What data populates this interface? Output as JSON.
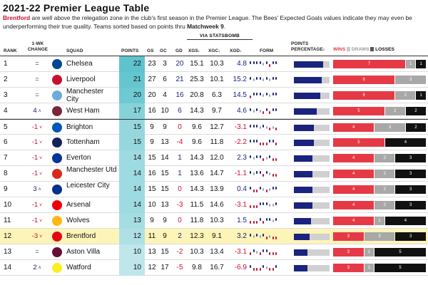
{
  "title": "2021-22 Premier League Table",
  "subtitle": {
    "team": "Brentford",
    "text1": " are well above the relegation zone in the club's first season in the Premier League. The Bees' Expected Goals values indicate they may even be underperforming their true quality. Teams sorted based on points thru ",
    "matchweek": "Matchweek 9",
    "text2": "."
  },
  "via_label": "VIA STATSBOMB",
  "headers": {
    "rank": "RANK",
    "change": "1-WK CHANGE",
    "squad": "SQUAD",
    "points": "POINTS",
    "gs": "GS",
    "gc": "GC",
    "gd": "GD",
    "xgs": "XGS",
    "xgc": "XGC",
    "xgd": "XGD",
    "footnote1": "1",
    "form": "FORM",
    "pct": "POINTS PERCENTAGE",
    "footnote2": "2",
    "wins": "WINS",
    "draws": "DRAWS",
    "losses": "LOSSES"
  },
  "colors": {
    "accent_red": "#c8102e",
    "navy": "#1a237e",
    "win": "#e63946",
    "draw": "#a8a8a8",
    "loss": "#111111"
  },
  "rows": [
    {
      "rank": "1",
      "change": "=",
      "dir": "eq",
      "squad": "Chelsea",
      "crest": "#034694",
      "crest_label": "CHE",
      "points": 22,
      "gs": "23",
      "gc": "3",
      "gd": "20",
      "xgs": "15.1",
      "xgc": "10.3",
      "xgd": "4.8",
      "pct": 0.81,
      "w": 7,
      "d": 1,
      "l": 1,
      "form": [
        "W",
        "W",
        "W",
        "W",
        "D",
        "W",
        "L",
        "W",
        "W"
      ]
    },
    {
      "rank": "2",
      "change": "=",
      "dir": "eq",
      "squad": "Liverpool",
      "crest": "#c8102e",
      "crest_label": "LIV",
      "points": 21,
      "gs": "27",
      "gc": "6",
      "gd": "21",
      "xgs": "25.3",
      "xgc": "10.1",
      "xgd": "15.2",
      "pct": 0.78,
      "w": 6,
      "d": 3,
      "l": 0,
      "form": [
        "W",
        "D",
        "W",
        "W",
        "D",
        "W",
        "D",
        "W",
        "W"
      ]
    },
    {
      "rank": "3",
      "change": "=",
      "dir": "eq",
      "squad": "Manchester City",
      "crest": "#6cabdd",
      "crest_label": "MCI",
      "points": 20,
      "gs": "20",
      "gc": "4",
      "gd": "16",
      "xgs": "20.8",
      "xgc": "6.3",
      "xgd": "14.5",
      "pct": 0.74,
      "w": 6,
      "d": 2,
      "l": 1,
      "form": [
        "L",
        "W",
        "W",
        "W",
        "D",
        "W",
        "D",
        "W",
        "W"
      ]
    },
    {
      "rank": "4",
      "change": "4",
      "dir": "up",
      "squad": "West Ham",
      "crest": "#7a263a",
      "crest_label": "WHU",
      "points": 17,
      "gs": "16",
      "gc": "10",
      "gd": "6",
      "xgs": "14.3",
      "xgc": "9.7",
      "xgd": "4.6",
      "pct": 0.63,
      "w": 5,
      "d": 2,
      "l": 2,
      "form": [
        "W",
        "D",
        "W",
        "D",
        "L",
        "W",
        "L",
        "W",
        "W"
      ]
    },
    {
      "rank": "5",
      "change": "-1",
      "dir": "down",
      "squad": "Brighton",
      "crest": "#0057b8",
      "crest_label": "BHA",
      "points": 15,
      "gs": "9",
      "gc": "9",
      "gd": "0",
      "xgs": "9.6",
      "xgc": "12.7",
      "xgd": "-3.1",
      "pct": 0.56,
      "w": 4,
      "d": 3,
      "l": 2,
      "form": [
        "W",
        "W",
        "W",
        "D",
        "W",
        "D",
        "L",
        "D",
        "L"
      ]
    },
    {
      "rank": "6",
      "change": "-1",
      "dir": "down",
      "squad": "Tottenham",
      "crest": "#132257",
      "crest_label": "TOT",
      "points": 15,
      "gs": "9",
      "gc": "13",
      "gd": "-4",
      "xgs": "9.6",
      "xgc": "11.8",
      "xgd": "-2.2",
      "pct": 0.56,
      "w": 5,
      "d": 0,
      "l": 4,
      "form": [
        "W",
        "W",
        "W",
        "L",
        "L",
        "L",
        "W",
        "W",
        "L"
      ]
    },
    {
      "rank": "7",
      "change": "-1",
      "dir": "down",
      "squad": "Everton",
      "crest": "#003399",
      "crest_label": "EVE",
      "points": 14,
      "gs": "15",
      "gc": "14",
      "gd": "1",
      "xgs": "14.3",
      "xgc": "12.0",
      "xgd": "2.3",
      "pct": 0.52,
      "w": 4,
      "d": 2,
      "l": 3,
      "form": [
        "W",
        "D",
        "W",
        "W",
        "L",
        "D",
        "W",
        "L",
        "L"
      ]
    },
    {
      "rank": "8",
      "change": "-1",
      "dir": "down",
      "squad": "Manchester Utd",
      "crest": "#da291c",
      "crest_label": "MUN",
      "points": 14,
      "gs": "16",
      "gc": "15",
      "gd": "1",
      "xgs": "13.6",
      "xgc": "14.7",
      "xgd": "-1.1",
      "pct": 0.52,
      "w": 4,
      "d": 2,
      "l": 3,
      "form": [
        "W",
        "D",
        "W",
        "W",
        "L",
        "W",
        "D",
        "L",
        "L"
      ]
    },
    {
      "rank": "9",
      "change": "3",
      "dir": "up",
      "squad": "Leicester City",
      "crest": "#003090",
      "crest_label": "LEI",
      "points": 14,
      "gs": "15",
      "gc": "15",
      "gd": "0",
      "xgs": "14.3",
      "xgc": "13.9",
      "xgd": "0.4",
      "pct": 0.52,
      "w": 4,
      "d": 2,
      "l": 3,
      "form": [
        "W",
        "L",
        "L",
        "W",
        "D",
        "L",
        "D",
        "W",
        "W"
      ]
    },
    {
      "rank": "10",
      "change": "-1",
      "dir": "down",
      "squad": "Arsenal",
      "crest": "#ef0107",
      "crest_label": "ARS",
      "points": 14,
      "gs": "10",
      "gc": "13",
      "gd": "-3",
      "xgs": "11.5",
      "xgc": "14.6",
      "xgd": "-3.1",
      "pct": 0.52,
      "w": 4,
      "d": 2,
      "l": 3,
      "form": [
        "L",
        "L",
        "L",
        "W",
        "W",
        "W",
        "D",
        "D",
        "W"
      ]
    },
    {
      "rank": "11",
      "change": "-1",
      "dir": "down",
      "squad": "Wolves",
      "crest": "#fdb913",
      "crest_label": "WOL",
      "points": 13,
      "gs": "9",
      "gc": "9",
      "gd": "0",
      "xgs": "11.8",
      "xgc": "10.3",
      "xgd": "1.5",
      "pct": 0.48,
      "w": 4,
      "d": 1,
      "l": 4,
      "form": [
        "L",
        "L",
        "L",
        "W",
        "L",
        "W",
        "W",
        "D",
        "W"
      ]
    },
    {
      "rank": "12",
      "change": "-3",
      "dir": "down",
      "squad": "Brentford",
      "crest": "#e30613",
      "crest_label": "BRE",
      "points": 12,
      "gs": "11",
      "gc": "9",
      "gd": "2",
      "xgs": "12.3",
      "xgc": "9.1",
      "xgd": "3.2",
      "pct": 0.44,
      "w": 3,
      "d": 3,
      "l": 3,
      "form": [
        "W",
        "D",
        "W",
        "D",
        "W",
        "L",
        "D",
        "L",
        "L"
      ],
      "highlight": true
    },
    {
      "rank": "13",
      "change": "=",
      "dir": "eq",
      "squad": "Aston Villa",
      "crest": "#670e36",
      "crest_label": "AVL",
      "points": 10,
      "gs": "13",
      "gc": "15",
      "gd": "-2",
      "xgs": "10.3",
      "xgc": "13.4",
      "xgd": "-3.1",
      "pct": 0.37,
      "w": 3,
      "d": 1,
      "l": 5,
      "form": [
        "L",
        "W",
        "D",
        "L",
        "W",
        "W",
        "L",
        "L",
        "L"
      ]
    },
    {
      "rank": "14",
      "change": "2",
      "dir": "up",
      "squad": "Watford",
      "crest": "#fbee23",
      "crest_label": "WAT",
      "points": 10,
      "gs": "12",
      "gc": "17",
      "gd": "-5",
      "xgs": "9.8",
      "xgc": "16.7",
      "xgd": "-6.9",
      "pct": 0.37,
      "w": 3,
      "d": 1,
      "l": 5,
      "form": [
        "W",
        "L",
        "L",
        "L",
        "W",
        "D",
        "L",
        "L",
        "W"
      ]
    }
  ]
}
